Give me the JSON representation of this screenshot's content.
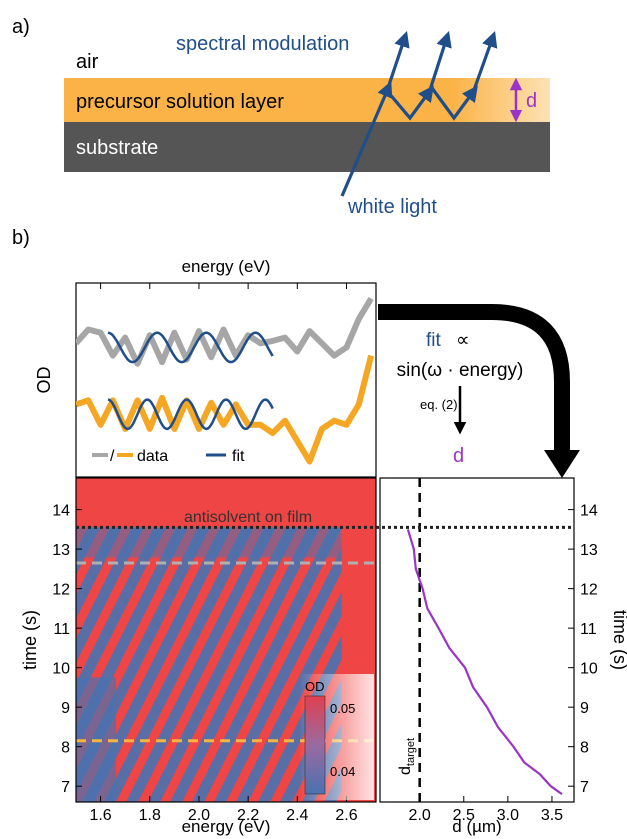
{
  "panel_a": {
    "label": "a)",
    "air": "air",
    "layer": "precursor solution layer",
    "substrate": "substrate",
    "spectral_modulation": "spectral modulation",
    "white_light": "white light",
    "thickness": "d"
  },
  "panel_b": {
    "label": "b)",
    "fit_word": "fit",
    "prop": "∝",
    "fit_formula": "sin(ω · energy)",
    "eq_label": "eq. (2)",
    "result": "d",
    "antisolvent": "antisolvent on film",
    "d_target_main": "d",
    "d_target_sub": "target",
    "colorbar_title": "OD"
  },
  "colors": {
    "layer": "#fbb347",
    "substrate": "#555555",
    "arrow_blue": "#1f4e8a",
    "data_gray": "#a6a6a6",
    "data_orange": "#f5a623",
    "fit": "#1f4e8a",
    "purple": "#9b33c9",
    "map_red": "#f04545",
    "map_blue": "#4a72b0"
  },
  "chart_data": [
    {
      "type": "line",
      "name": "spectrum",
      "xlabel": "energy (eV)",
      "ylabel": "OD",
      "xlim": [
        1.5,
        2.72
      ],
      "xticks": [
        1.6,
        1.8,
        2.0,
        2.2,
        2.4,
        2.6
      ],
      "legend": {
        "data_label": "data",
        "data_sep": "/",
        "fit_label": "fit",
        "position": "bottom-left"
      },
      "series": [
        {
          "role": "data-gray",
          "x": [
            1.5,
            1.55,
            1.6,
            1.65,
            1.7,
            1.75,
            1.8,
            1.85,
            1.9,
            1.95,
            2.0,
            2.05,
            2.1,
            2.15,
            2.2,
            2.25,
            2.3,
            2.35,
            2.4,
            2.45,
            2.5,
            2.55,
            2.6,
            2.65,
            2.7
          ],
          "y": [
            0.45,
            0.62,
            0.58,
            0.3,
            0.52,
            0.2,
            0.55,
            0.22,
            0.58,
            0.25,
            0.6,
            0.28,
            0.62,
            0.3,
            0.55,
            0.45,
            0.48,
            0.52,
            0.35,
            0.6,
            0.45,
            0.3,
            0.4,
            0.75,
            1.0
          ]
        },
        {
          "role": "fit-top",
          "x_range": [
            1.63,
            2.3
          ],
          "period": 0.2,
          "phase": 0.0
        },
        {
          "role": "data-orange",
          "x": [
            1.5,
            1.55,
            1.6,
            1.65,
            1.7,
            1.75,
            1.8,
            1.85,
            1.9,
            1.95,
            2.0,
            2.05,
            2.1,
            2.15,
            2.2,
            2.25,
            2.3,
            2.35,
            2.4,
            2.45,
            2.5,
            2.55,
            2.6,
            2.65,
            2.7
          ],
          "y": [
            -0.3,
            -0.25,
            -0.55,
            -0.25,
            -0.6,
            -0.25,
            -0.6,
            -0.22,
            -0.6,
            -0.25,
            -0.6,
            -0.28,
            -0.55,
            -0.3,
            -0.55,
            -0.55,
            -0.65,
            -0.5,
            -0.75,
            -1.0,
            -0.6,
            -0.5,
            -0.55,
            -0.3,
            0.3
          ]
        },
        {
          "role": "fit-bottom",
          "x_range": [
            1.63,
            2.3
          ],
          "period": 0.16,
          "phase": 0.0
        }
      ]
    },
    {
      "type": "heatmap",
      "name": "time-energy map",
      "xlabel": "energy (eV)",
      "ylabel": "time (s)",
      "xlim": [
        1.5,
        2.72
      ],
      "ylim": [
        6.6,
        14.8
      ],
      "xticks": [
        1.6,
        1.8,
        2.0,
        2.2,
        2.4,
        2.6
      ],
      "yticks": [
        7,
        8,
        9,
        10,
        11,
        12,
        13,
        14
      ],
      "colorbar": {
        "min": 0.04,
        "max": 0.05,
        "ticks": [
          "0.05",
          "0.04"
        ]
      },
      "markers": {
        "antisolvent_time": 13.55,
        "gray_line_time": 12.65,
        "orange_line_time": 8.15
      }
    },
    {
      "type": "line",
      "name": "thickness vs time",
      "xlabel": "d (µm)",
      "ylabel": "time (s)",
      "xlim": [
        1.55,
        3.75
      ],
      "ylim": [
        6.6,
        14.8
      ],
      "xticks": [
        2.0,
        2.5,
        3.0,
        3.5
      ],
      "xticklabels": [
        "2.0",
        "2.5",
        "3.0",
        "3.5"
      ],
      "yticks": [
        7,
        8,
        9,
        10,
        11,
        12,
        13,
        14
      ],
      "d_target": 2.0,
      "series": [
        {
          "role": "d-curve",
          "x": [
            1.88,
            1.92,
            1.97,
            2.02,
            2.1,
            2.2,
            2.35,
            2.5,
            2.62,
            2.75,
            2.9,
            3.05,
            3.2,
            3.35,
            3.5,
            3.6
          ],
          "y": [
            13.5,
            13.0,
            12.5,
            12.0,
            11.5,
            11.0,
            10.5,
            10.0,
            9.5,
            9.0,
            8.5,
            8.0,
            7.6,
            7.3,
            7.0,
            6.8
          ]
        }
      ]
    }
  ]
}
